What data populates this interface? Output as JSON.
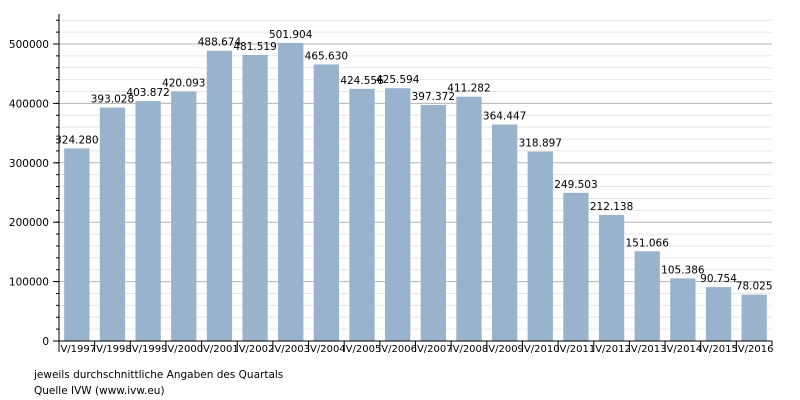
{
  "chart_data": {
    "type": "bar",
    "categories": [
      "IV/1997",
      "IV/1998",
      "IV/1999",
      "IV/2000",
      "IV/2001",
      "IV/2002",
      "IV/2003",
      "IV/2004",
      "IV/2005",
      "IV/2006",
      "IV/2007",
      "IV/2008",
      "IV/2009",
      "IV/2010",
      "IV/2011",
      "IV/2012",
      "IV/2013",
      "IV/2014",
      "IV/2015",
      "IV/2016"
    ],
    "values": [
      324280,
      393028,
      403872,
      420093,
      488674,
      481519,
      501904,
      465630,
      424556,
      425594,
      397372,
      411282,
      364447,
      318897,
      249503,
      212138,
      151066,
      105386,
      90754,
      78025
    ],
    "data_labels": [
      "324.280",
      "393.028",
      "403.872",
      "420.093",
      "488.674",
      "481.519",
      "501.904",
      "465.630",
      "424.556",
      "425.594",
      "397.372",
      "411.282",
      "364.447",
      "318.897",
      "249.503",
      "212.138",
      "151.066",
      "105.386",
      "90.754",
      "78.025"
    ],
    "y_ticks": [
      0,
      100000,
      200000,
      300000,
      400000,
      500000
    ],
    "y_tick_labels": [
      "0",
      "100000",
      "200000",
      "300000",
      "400000",
      "500000"
    ],
    "ylim": [
      0,
      500000
    ],
    "grid": true,
    "bar_color": "#9ab3cc",
    "title": "",
    "xlabel": "",
    "ylabel": ""
  },
  "notes": {
    "line1": "jeweils durchschnittliche Angaben des Quartals",
    "line2": "Quelle IVW (www.ivw.eu)"
  }
}
